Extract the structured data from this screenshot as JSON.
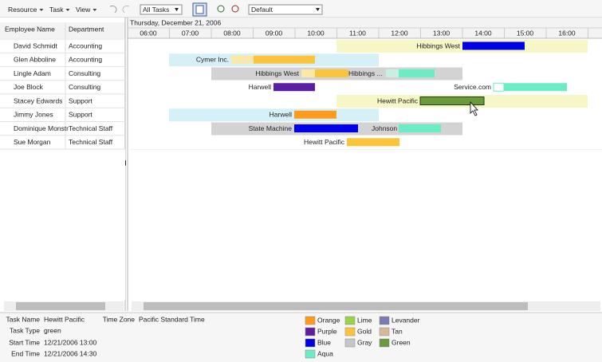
{
  "toolbar": {
    "menus": [
      "Resource",
      "Task",
      "View"
    ],
    "task_filter": "All Tasks",
    "view_filter": "Default"
  },
  "table": {
    "headers": [
      "Employee Name",
      "Department"
    ],
    "rows": [
      [
        "David Schmidt",
        "Accounting"
      ],
      [
        "Glen Abboline",
        "Accounting"
      ],
      [
        "Lingle Adam",
        "Consulting"
      ],
      [
        "Joe Block",
        "Consulting"
      ],
      [
        "Stacey Edwards",
        "Support"
      ],
      [
        "Jimmy Jones",
        "Support"
      ],
      [
        "Dominique Monstr",
        "Technical Staff"
      ],
      [
        "Sue Morgan",
        "Technical Staff"
      ]
    ]
  },
  "timeline": {
    "date": "Thursday, December 21, 2006",
    "hours": [
      "06:00",
      "07:00",
      "08:00",
      "09:00",
      "10:00",
      "11:00",
      "12:00",
      "13:00",
      "14:00",
      "15:00",
      "16:00"
    ]
  },
  "tasks": [
    "Hibbings West",
    "Cymer Inc.",
    "Hibbings West",
    "Hibbings ...",
    "Harwell",
    "Service.com",
    "Hewitt Pacific",
    "Harwell",
    "State Machine",
    "Johnson",
    "Hewitt Pacific"
  ],
  "details": {
    "task_name": {
      "label": "Task Name",
      "value": "Hewitt Pacific"
    },
    "time_zone": {
      "label": "Time Zone",
      "value": "Pacific Standard Time"
    },
    "task_type": {
      "label": "Task Type",
      "value": "green"
    },
    "start_time": {
      "label": "Start Time",
      "value": "12/21/2006 13:00"
    },
    "end_time": {
      "label": "End Time",
      "value": "12/21/2006 14:30"
    }
  },
  "legend": [
    "Orange",
    "Lime",
    "Levander",
    "Purple",
    "Gold",
    "Tan",
    "Blue",
    "Gray",
    "Green",
    "Aqua"
  ]
}
